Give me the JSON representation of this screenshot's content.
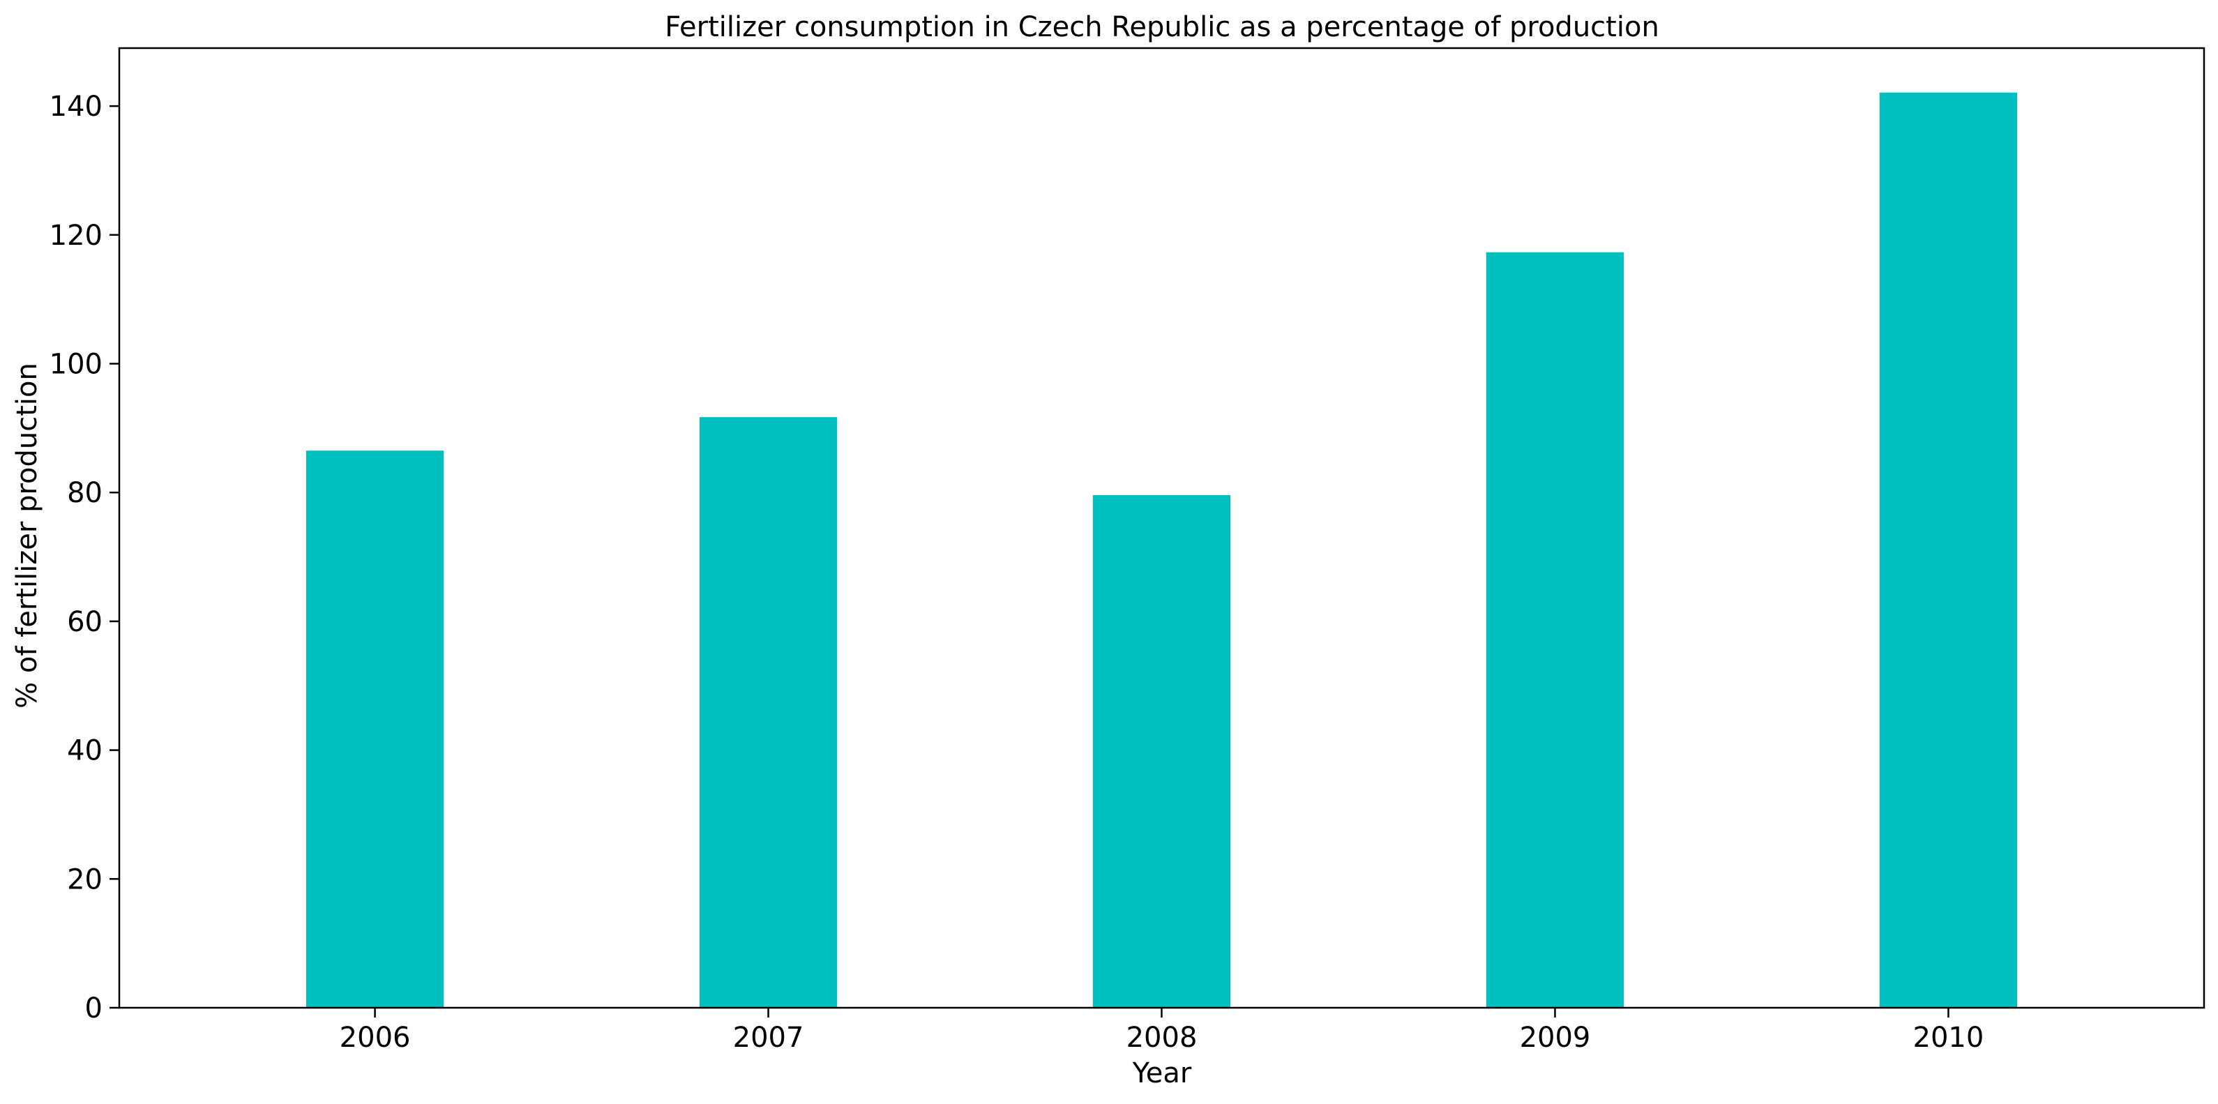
{
  "chart_data": {
    "type": "bar",
    "title": "Fertilizer consumption in Czech Republic as a percentage of production",
    "xlabel": "Year",
    "ylabel": "% of fertilizer production",
    "categories": [
      "2006",
      "2007",
      "2008",
      "2009",
      "2010"
    ],
    "values": [
      86.5,
      91.7,
      79.6,
      117.3,
      142.1
    ],
    "ylim": [
      0,
      149
    ],
    "yticks": [
      0,
      20,
      40,
      60,
      80,
      100,
      120,
      140
    ],
    "grid": false,
    "bar_color": "#00bfbf"
  }
}
